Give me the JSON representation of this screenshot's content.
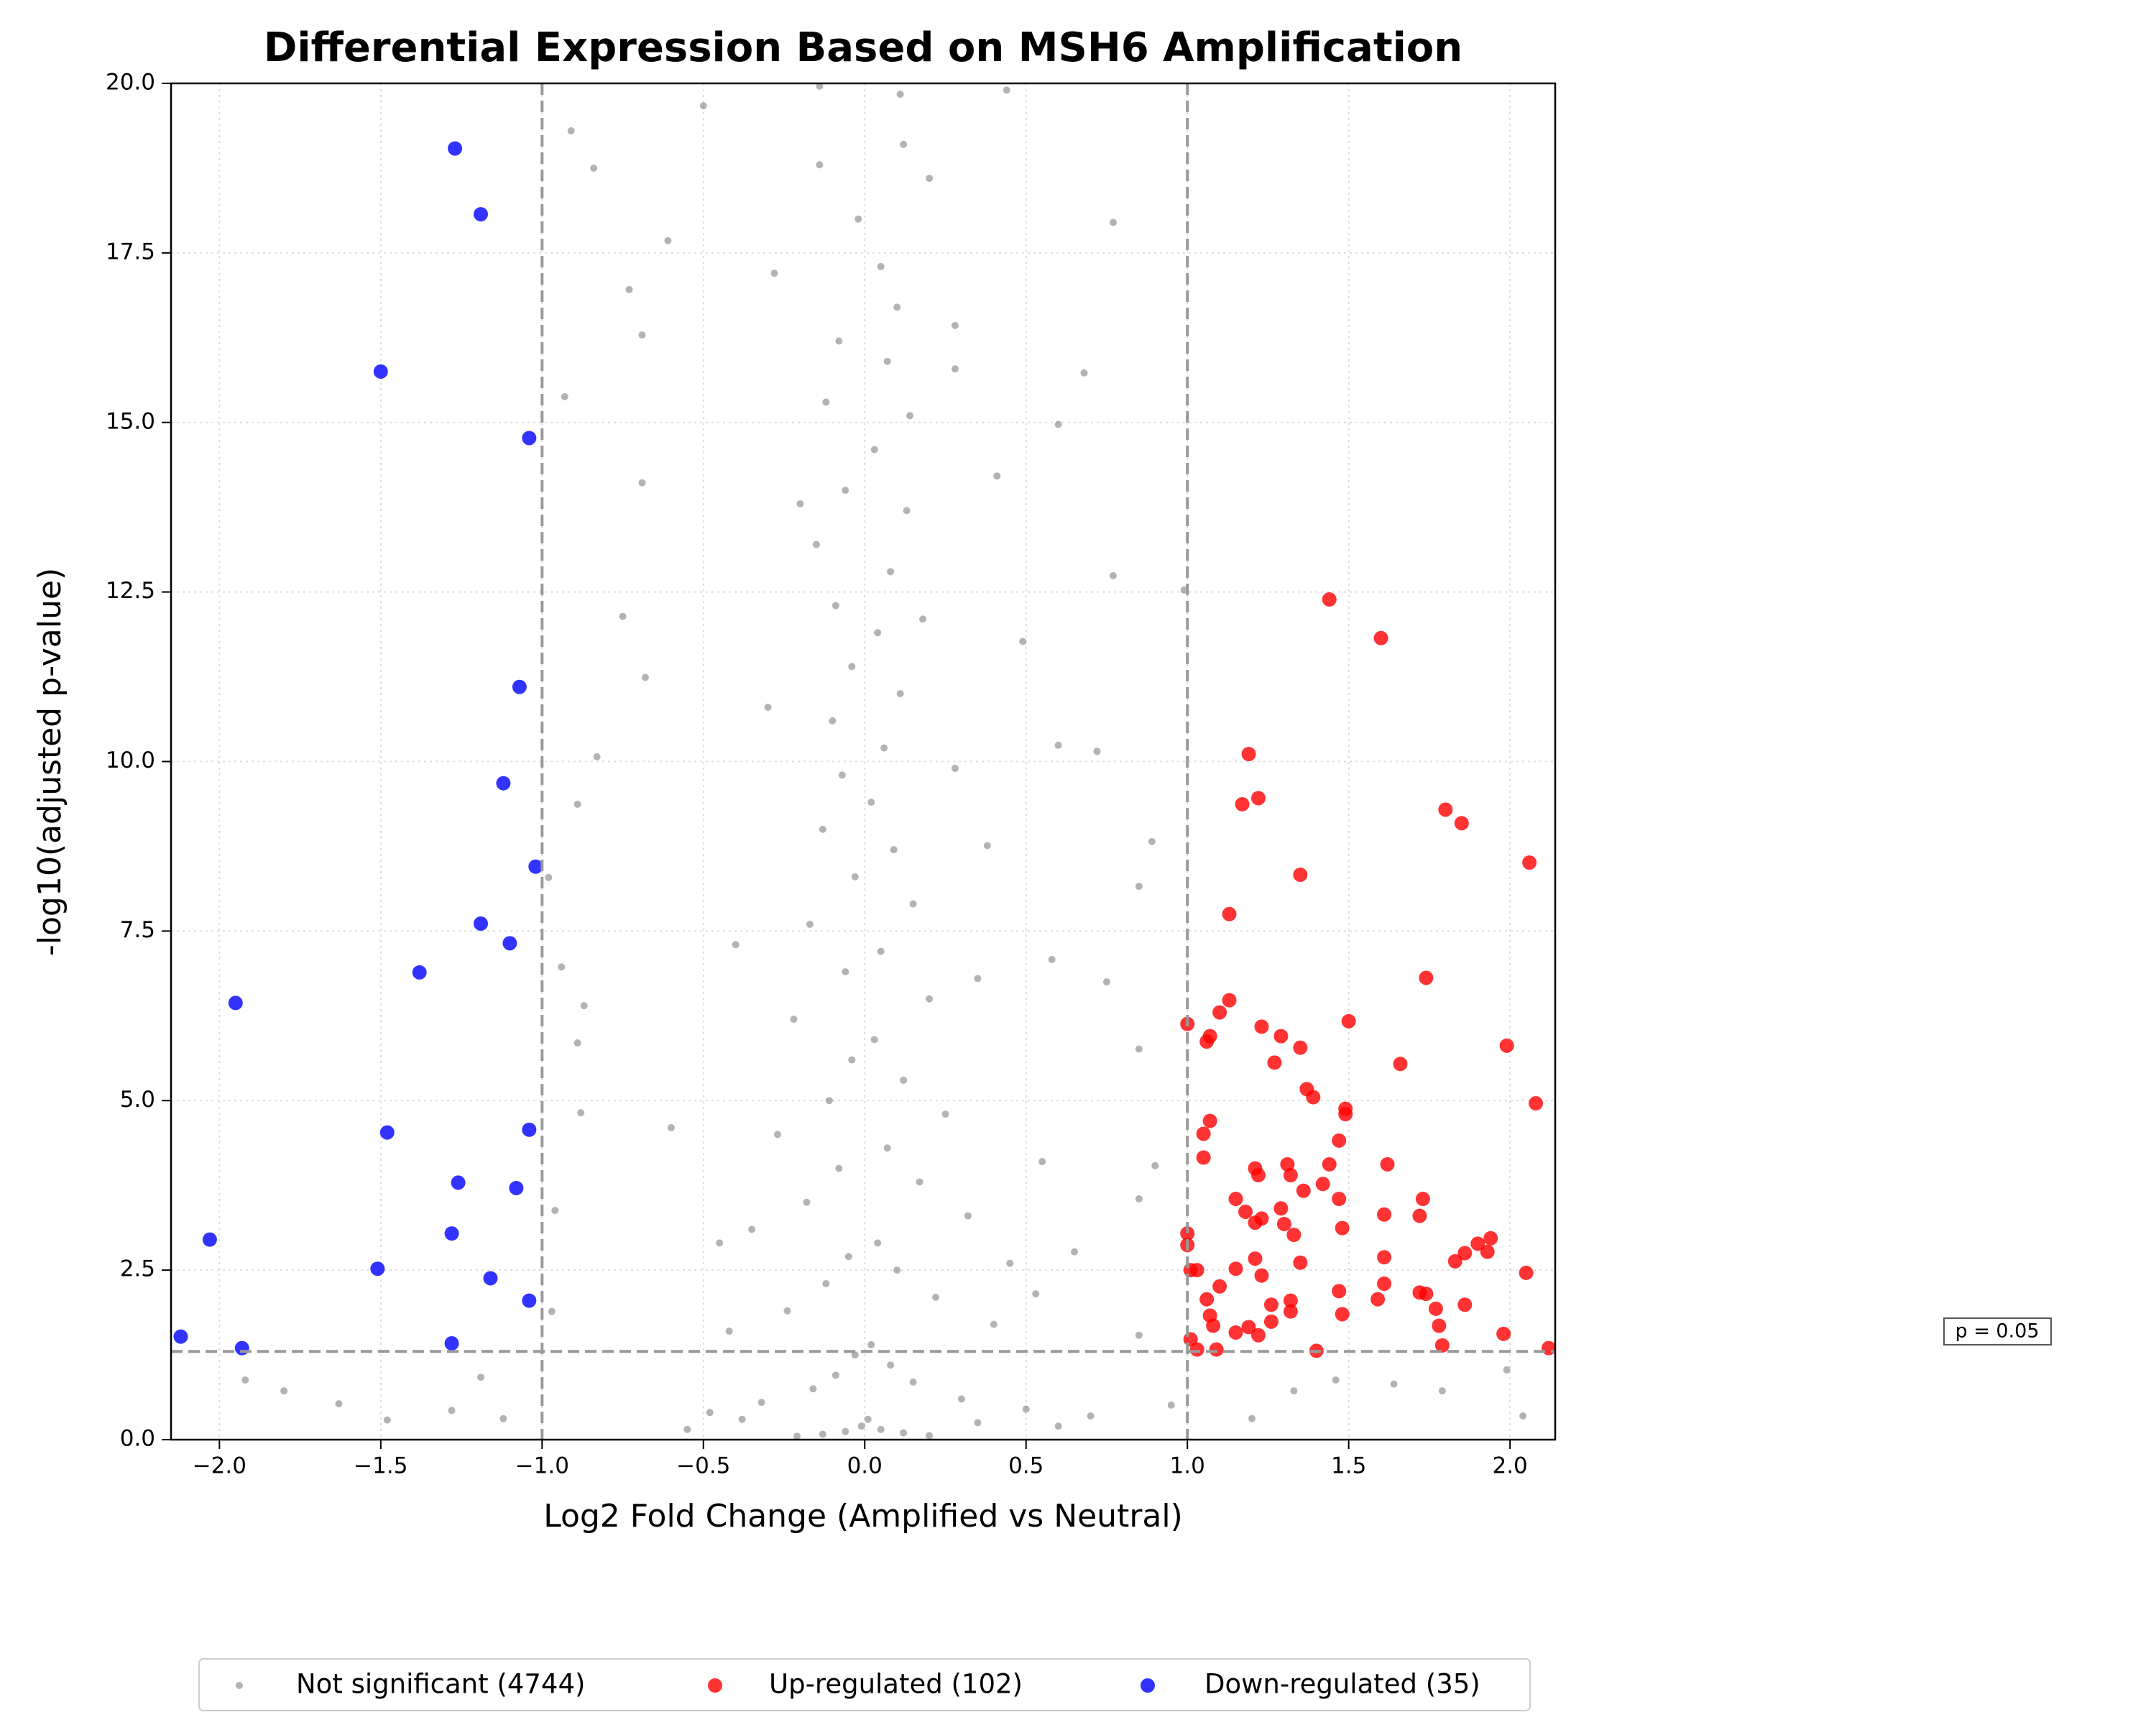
{
  "chart_data": {
    "type": "scatter",
    "title": "Differential Expression Based on MSH6 Amplification",
    "x_label": "Log2 Fold Change (Amplified vs Neutral)",
    "y_label": "-log10(adjusted p-value)",
    "annotation": "p = 0.05",
    "vlines": [
      -1,
      1
    ],
    "hline": 1.301,
    "xlim": [
      -2.15,
      2.14
    ],
    "ylim": [
      0,
      20
    ],
    "xticks": [
      {
        "value": -2,
        "label": "−2.0"
      },
      {
        "value": -1.5,
        "label": "−1.5"
      },
      {
        "value": -1,
        "label": "−1.0"
      },
      {
        "value": -0.5,
        "label": "−0.5"
      },
      {
        "value": 0,
        "label": "0.0"
      },
      {
        "value": 0.5,
        "label": "0.5"
      },
      {
        "value": 1,
        "label": "1.0"
      },
      {
        "value": 1.5,
        "label": "1.5"
      },
      {
        "value": 2,
        "label": "2.0"
      }
    ],
    "yticks": [
      {
        "value": 0,
        "label": "0.0"
      },
      {
        "value": 2.5,
        "label": "2.5"
      },
      {
        "value": 5,
        "label": "5.0"
      },
      {
        "value": 7.5,
        "label": "7.5"
      },
      {
        "value": 10,
        "label": "10.0"
      },
      {
        "value": 12.5,
        "label": "12.5"
      },
      {
        "value": 15,
        "label": "15.0"
      },
      {
        "value": 17.5,
        "label": "17.5"
      },
      {
        "value": 20,
        "label": "20.0"
      }
    ],
    "grid": true,
    "legend": "bottom",
    "series": [
      {
        "name": "Not significant (4744)",
        "color": "#808080",
        "x": [
          -0.91,
          -0.84,
          -0.5,
          -0.14,
          0.11,
          0.44,
          0.77,
          0.68,
          0.6,
          0.41,
          -0.93,
          0.99,
          0.77,
          0.49,
          -0.61,
          -0.73,
          -0.69,
          0.28,
          0.28,
          -0.69,
          -0.75,
          -0.68,
          -0.83,
          -0.89,
          -0.98,
          -0.94,
          -0.87,
          -0.89,
          -0.88,
          -0.96,
          -0.97,
          -1.63,
          -1.8,
          -1.92,
          -1.48,
          -1.28,
          -1.12,
          -1.19,
          0.85,
          0.89,
          0.72,
          0.6,
          0.38,
          0.58,
          0.75,
          0.85,
          0.9,
          0.85,
          0.65,
          0.53,
          0.85,
          0.95,
          1.2,
          1.64,
          1.79,
          2.04,
          1.99,
          1.46,
          1.33,
          -0.02,
          0.05,
          0.1,
          -0.08,
          0.07,
          -0.12,
          0.03,
          -0.06,
          0.13,
          -0.15,
          0.08,
          -0.09,
          0.04,
          -0.04,
          0.11,
          -0.1,
          0.06,
          -0.07,
          0.02,
          -0.13,
          0.09,
          -0.03,
          0.15,
          -0.17,
          0.05,
          -0.06,
          0.2,
          -0.22,
          0.03,
          -0.04,
          0.12,
          -0.11,
          0.25,
          -0.27,
          0.07,
          -0.08,
          0.17,
          -0.18,
          0.32,
          -0.35,
          0.04,
          -0.05,
          0.1,
          -0.12,
          0.22,
          -0.24,
          0.4,
          -0.42,
          0.02,
          -0.03,
          0.08,
          -0.09,
          0.15,
          -0.16,
          0.3,
          -0.32,
          0.5,
          -0.48,
          0.01,
          -0.01,
          0.05,
          -0.06,
          0.12,
          -0.13,
          0.2,
          -0.21,
          0.35,
          -0.38,
          0.6,
          0.7,
          -0.55,
          0.45,
          -0.45,
          0.55,
          -0.6,
          0.35,
          -0.4,
          0.28,
          -0.3,
          0.18,
          -0.2,
          0.14,
          -0.28,
          0.2,
          -0.14,
          0.12
        ],
        "values": [
          19.3,
          18.75,
          19.67,
          19.96,
          19.84,
          19.9,
          17.95,
          15.73,
          14.97,
          14.21,
          15.38,
          12.53,
          12.74,
          11.77,
          17.68,
          16.96,
          16.29,
          16.43,
          15.79,
          14.11,
          12.14,
          11.24,
          10.07,
          9.37,
          8.29,
          6.97,
          6.4,
          5.85,
          4.82,
          3.38,
          1.89,
          0.53,
          0.72,
          0.88,
          0.29,
          0.43,
          0.31,
          0.92,
          8.16,
          8.82,
          10.15,
          10.24,
          8.76,
          7.08,
          6.75,
          5.76,
          4.04,
          3.55,
          2.77,
          2.15,
          1.54,
          0.51,
          0.31,
          0.82,
          0.72,
          0.35,
          1.03,
          0.88,
          0.72,
          18.0,
          17.3,
          16.7,
          16.2,
          15.9,
          15.3,
          14.6,
          14.0,
          13.7,
          13.2,
          12.8,
          12.3,
          11.9,
          11.4,
          11.0,
          10.6,
          10.2,
          9.8,
          9.4,
          9.0,
          8.7,
          8.3,
          7.9,
          7.6,
          7.2,
          6.9,
          6.5,
          6.2,
          5.9,
          5.6,
          5.3,
          5.0,
          4.8,
          4.5,
          4.3,
          4.0,
          3.8,
          3.5,
          3.3,
          3.1,
          2.9,
          2.7,
          2.5,
          2.3,
          2.1,
          1.9,
          1.7,
          1.6,
          1.4,
          1.25,
          1.1,
          0.95,
          0.85,
          0.75,
          0.6,
          0.55,
          0.45,
          0.4,
          0.3,
          0.2,
          0.15,
          0.12,
          0.1,
          0.08,
          0.06,
          0.05,
          0.25,
          0.3,
          0.2,
          0.35,
          0.15,
          2.6,
          2.9,
          4.1,
          4.6,
          6.8,
          7.3,
          9.9,
          10.8,
          12.1,
          13.8,
          15.1,
          17.2,
          18.6,
          18.8,
          19.1
        ]
      },
      {
        "name": "Up-regulated (102)",
        "color": "#ff0000",
        "x": [
          1.44,
          1.6,
          1.19,
          1.22,
          1.17,
          1.8,
          1.85,
          2.06,
          1.35,
          1.13,
          1.74,
          1.13,
          1.1,
          1.0,
          1.07,
          1.06,
          1.23,
          1.5,
          1.29,
          1.35,
          1.99,
          1.27,
          1.66,
          1.37,
          1.39,
          2.08,
          1.49,
          1.49,
          1.07,
          1.05,
          1.47,
          1.05,
          1.31,
          1.44,
          1.62,
          1.21,
          1.22,
          1.32,
          1.42,
          1.36,
          1.47,
          1.15,
          1.73,
          1.18,
          1.29,
          1.61,
          1.72,
          1.21,
          1.23,
          1.3,
          1.33,
          1.48,
          1.0,
          1.94,
          1.9,
          1.0,
          1.93,
          1.86,
          1.83,
          1.61,
          1.21,
          1.35,
          1.15,
          1.01,
          1.03,
          2.05,
          1.23,
          1.61,
          1.1,
          1.47,
          1.72,
          1.74,
          1.06,
          1.32,
          1.59,
          1.26,
          1.86,
          1.77,
          1.32,
          1.48,
          1.07,
          1.26,
          1.08,
          1.78,
          1.19,
          1.15,
          1.22,
          1.98,
          1.01,
          1.03,
          1.09,
          1.4,
          1.79,
          2.12
        ],
        "values": [
          12.39,
          11.82,
          10.11,
          9.46,
          9.37,
          9.29,
          9.09,
          8.51,
          8.33,
          7.75,
          6.81,
          6.48,
          6.3,
          6.13,
          5.95,
          5.87,
          6.09,
          6.17,
          5.95,
          5.78,
          5.81,
          5.56,
          5.54,
          5.17,
          5.05,
          4.96,
          4.88,
          4.8,
          4.7,
          4.51,
          4.41,
          4.16,
          4.06,
          4.06,
          4.06,
          4.0,
          3.9,
          3.9,
          3.77,
          3.67,
          3.55,
          3.55,
          3.55,
          3.36,
          3.41,
          3.32,
          3.3,
          3.2,
          3.26,
          3.18,
          3.02,
          3.12,
          3.04,
          2.97,
          2.89,
          2.87,
          2.77,
          2.75,
          2.63,
          2.69,
          2.67,
          2.61,
          2.52,
          2.5,
          2.5,
          2.46,
          2.42,
          2.3,
          2.26,
          2.19,
          2.17,
          2.15,
          2.07,
          2.05,
          2.07,
          1.99,
          1.99,
          1.93,
          1.89,
          1.85,
          1.83,
          1.74,
          1.68,
          1.68,
          1.66,
          1.58,
          1.54,
          1.56,
          1.48,
          1.33,
          1.33,
          1.31,
          1.39,
          1.35
        ]
      },
      {
        "name": "Down-regulated (35)",
        "color": "#0000ff",
        "x": [
          -1.27,
          -1.19,
          -1.5,
          -1.04,
          -1.07,
          -1.12,
          -1.02,
          -1.19,
          -1.1,
          -1.38,
          -1.95,
          -1.48,
          -1.04,
          -1.26,
          -1.08,
          -2.03,
          -1.28,
          -1.51,
          -1.16,
          -1.04,
          -2.12,
          -1.93,
          -1.28
        ],
        "values": [
          19.04,
          18.07,
          15.75,
          14.77,
          11.1,
          9.68,
          8.45,
          7.61,
          7.32,
          6.89,
          6.44,
          4.53,
          4.57,
          3.79,
          3.71,
          2.95,
          3.04,
          2.52,
          2.38,
          2.05,
          1.52,
          1.35,
          1.42
        ]
      }
    ]
  }
}
